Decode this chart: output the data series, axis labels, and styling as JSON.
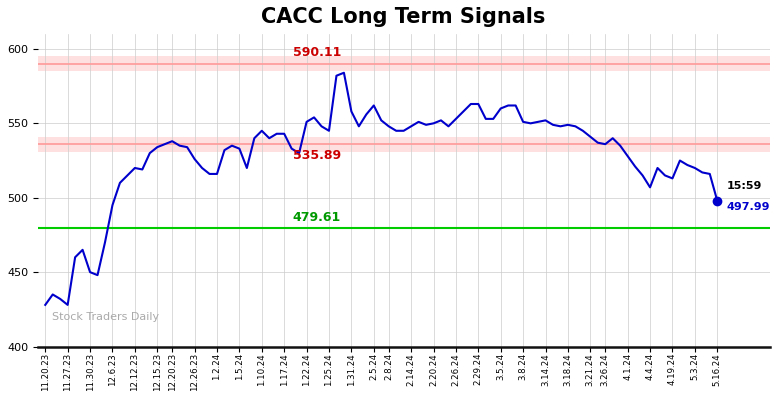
{
  "title": "CACC Long Term Signals",
  "title_fontsize": 15,
  "title_fontweight": "bold",
  "background_color": "#ffffff",
  "plot_bg_color": "#ffffff",
  "grid_color": "#cccccc",
  "line_color": "#0000cc",
  "line_width": 1.5,
  "hline_upper": 590.11,
  "hline_lower": 535.89,
  "hline_green": 479.61,
  "hline_red_color": "#ff9999",
  "hline_green_color": "#00cc00",
  "hline_upper_label_color": "#cc0000",
  "hline_lower_label_color": "#cc0000",
  "hline_green_label_color": "#009900",
  "last_price": 497.99,
  "last_time": "15:59",
  "last_dot_color": "#0000cc",
  "watermark": "Stock Traders Daily",
  "watermark_color": "#aaaaaa",
  "ylim": [
    400,
    610
  ],
  "yticks": [
    400,
    450,
    500,
    550,
    600
  ],
  "xtick_labels": [
    "11.20.23",
    "11.27.23",
    "11.30.23",
    "12.6.23",
    "12.12.23",
    "12.15.23",
    "12.20.23",
    "12.26.23",
    "1.2.24",
    "1.5.24",
    "1.10.24",
    "1.17.24",
    "1.22.24",
    "1.25.24",
    "1.31.24",
    "2.5.24",
    "2.8.24",
    "2.14.24",
    "2.20.24",
    "2.26.24",
    "2.29.24",
    "3.5.24",
    "3.8.24",
    "3.14.24",
    "3.18.24",
    "3.21.24",
    "3.26.24",
    "4.1.24",
    "4.4.24",
    "4.19.24",
    "5.3.24",
    "5.16.24"
  ],
  "y_values": [
    428,
    435,
    432,
    428,
    460,
    465,
    450,
    448,
    470,
    495,
    510,
    515,
    520,
    519,
    530,
    534,
    536,
    538,
    535,
    534,
    526,
    520,
    516,
    516,
    532,
    535,
    533,
    520,
    540,
    545,
    540,
    543,
    543,
    533,
    530,
    551,
    554,
    548,
    545,
    582,
    584,
    558,
    548,
    556,
    562,
    552,
    548,
    545,
    545,
    548,
    551,
    549,
    550,
    552,
    548,
    553,
    558,
    563,
    563,
    553,
    553,
    560,
    562,
    562,
    551,
    550,
    551,
    552,
    549,
    548,
    549,
    548,
    545,
    541,
    537,
    536,
    540,
    535,
    528,
    521,
    515,
    507,
    520,
    515,
    513,
    525,
    522,
    520,
    517,
    516,
    498
  ]
}
